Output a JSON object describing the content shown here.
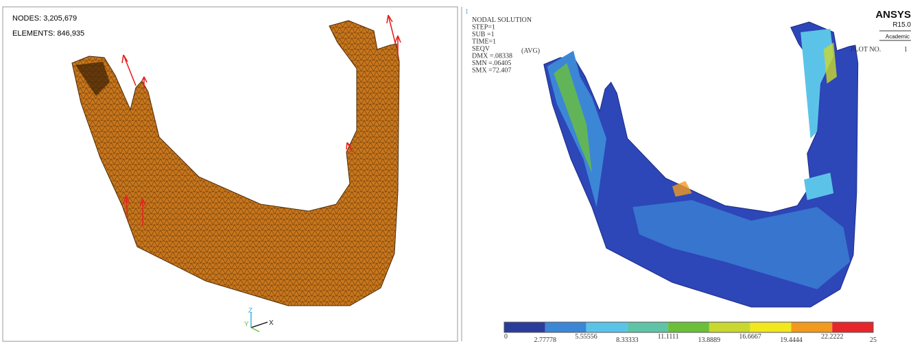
{
  "left_panel": {
    "nodes": "NODES: 3,205,679",
    "elements": "ELEMENTS: 846,935",
    "triad": [
      "Z",
      "Y",
      "X"
    ]
  },
  "right_panel": {
    "window": "1",
    "header": [
      "NODAL SOLUTION",
      "STEP=1",
      "SUB =1",
      "TIME=1",
      "SEQV",
      "DMX =.08338",
      "SMN =.06405",
      "SMX =72.407"
    ],
    "avg": "(AVG)",
    "brand": "ANSYS",
    "release": "R15.0",
    "edition": "Academic",
    "plot_label": "PLOT NO.",
    "plot_number": "1"
  },
  "colorbar": {
    "colors": [
      "#2a3b9a",
      "#3c86d6",
      "#5cc3e8",
      "#5fc4a6",
      "#6cbf3a",
      "#c9d82e",
      "#f1e81e",
      "#f19a1e",
      "#e6262a"
    ],
    "labels": [
      "0",
      "2.77778",
      "5.55556",
      "8.33333",
      "11.1111",
      "13.8889",
      "16.6667",
      "19.4444",
      "22.2222",
      "25"
    ]
  }
}
